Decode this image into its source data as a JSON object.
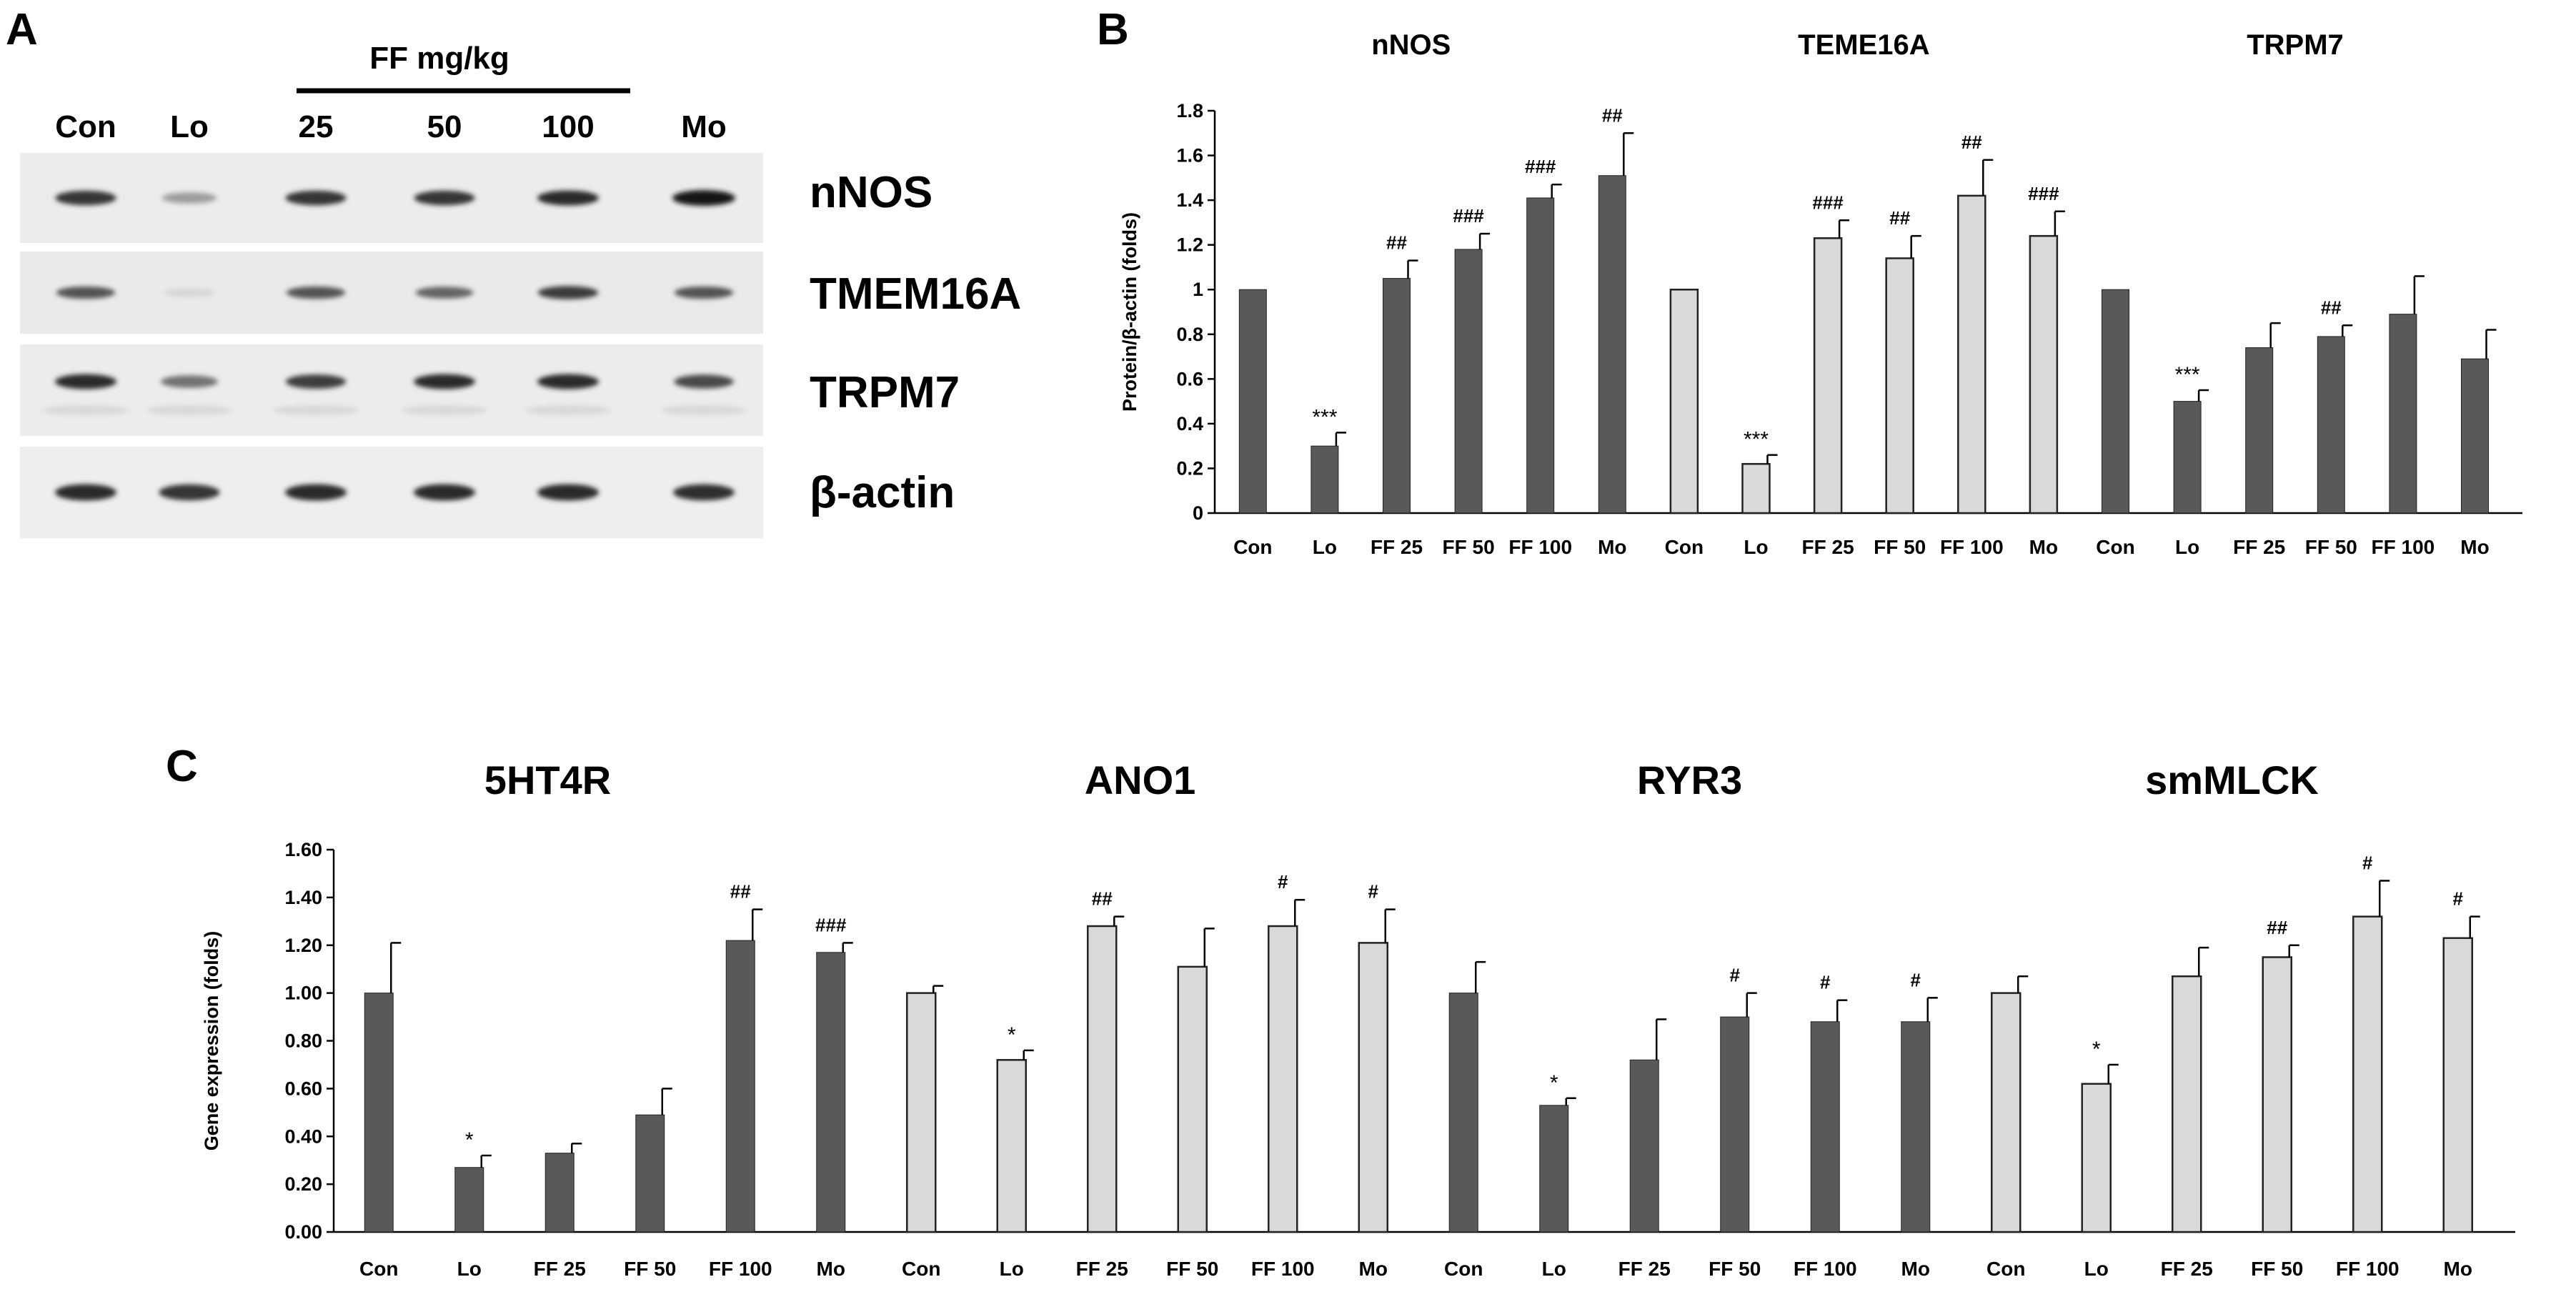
{
  "panel_a": {
    "letter": "A",
    "treatment_label": "FF mg/kg",
    "lanes": [
      "Con",
      "Lo",
      "25",
      "50",
      "100",
      "Mo"
    ],
    "bands": [
      "nNOS",
      "TMEM16A",
      "TRPM7",
      "β-actin"
    ]
  },
  "chart_data": [
    {
      "panel": "B",
      "type": "bar",
      "ylabel": "Protein/β-actin (folds)",
      "xlabel": "",
      "ylim": [
        0,
        1.8
      ],
      "yticks": [
        "0",
        "0.2",
        "0.4",
        "0.6",
        "0.8",
        "1",
        "1.2",
        "1.4",
        "1.6",
        "1.8"
      ],
      "legend": "none",
      "groups": [
        {
          "title": "nNOS",
          "fill": "#595959",
          "categories": [
            "Con",
            "Lo",
            "FF 25",
            "FF 50",
            "FF 100",
            "Mo"
          ],
          "values": [
            1.0,
            0.3,
            1.05,
            1.18,
            1.41,
            1.51
          ],
          "errors": [
            0.0,
            0.06,
            0.08,
            0.07,
            0.06,
            0.19
          ],
          "annotations": [
            "",
            "***",
            "##",
            "###",
            "###",
            "##"
          ]
        },
        {
          "title": "TEME16A",
          "fill": "#d9d9d9",
          "categories": [
            "Con",
            "Lo",
            "FF 25",
            "FF 50",
            "FF 100",
            "Mo"
          ],
          "values": [
            1.0,
            0.22,
            1.23,
            1.14,
            1.42,
            1.24
          ],
          "errors": [
            0.0,
            0.04,
            0.08,
            0.1,
            0.16,
            0.11
          ],
          "annotations": [
            "",
            "***",
            "###",
            "##",
            "##",
            "###"
          ]
        },
        {
          "title": "TRPM7",
          "fill": "#595959",
          "categories": [
            "Con",
            "Lo",
            "FF 25",
            "FF 50",
            "FF 100",
            "Mo"
          ],
          "values": [
            1.0,
            0.5,
            0.74,
            0.79,
            0.89,
            0.69
          ],
          "errors": [
            0.0,
            0.05,
            0.11,
            0.05,
            0.17,
            0.13
          ],
          "annotations": [
            "",
            "***",
            "",
            "##",
            "",
            ""
          ]
        }
      ]
    },
    {
      "panel": "C",
      "type": "bar",
      "ylabel": "Gene expression (folds)",
      "xlabel": "",
      "ylim": [
        0,
        1.6
      ],
      "yticks": [
        "0.00",
        "0.20",
        "0.40",
        "0.60",
        "0.80",
        "1.00",
        "1.20",
        "1.40",
        "1.60"
      ],
      "legend": "none",
      "groups": [
        {
          "title": "5HT4R",
          "fill": "#595959",
          "categories": [
            "Con",
            "Lo",
            "FF 25",
            "FF 50",
            "FF 100",
            "Mo"
          ],
          "values": [
            1.0,
            0.27,
            0.33,
            0.49,
            1.22,
            1.17
          ],
          "errors": [
            0.21,
            0.05,
            0.04,
            0.11,
            0.13,
            0.04
          ],
          "annotations": [
            "",
            "*",
            "",
            "",
            "##",
            "###"
          ]
        },
        {
          "title": "ANO1",
          "fill": "#d9d9d9",
          "categories": [
            "Con",
            "Lo",
            "FF 25",
            "FF 50",
            "FF 100",
            "Mo"
          ],
          "values": [
            1.0,
            0.72,
            1.28,
            1.11,
            1.28,
            1.21
          ],
          "errors": [
            0.03,
            0.04,
            0.04,
            0.16,
            0.11,
            0.14
          ],
          "annotations": [
            "",
            "*",
            "##",
            "",
            "#",
            "#"
          ]
        },
        {
          "title": "RYR3",
          "fill": "#595959",
          "categories": [
            "Con",
            "Lo",
            "FF 25",
            "FF 50",
            "FF 100",
            "Mo"
          ],
          "values": [
            1.0,
            0.53,
            0.72,
            0.9,
            0.88,
            0.88
          ],
          "errors": [
            0.13,
            0.03,
            0.17,
            0.1,
            0.09,
            0.1
          ],
          "annotations": [
            "",
            "*",
            "",
            "#",
            "#",
            "#"
          ]
        },
        {
          "title": "smMLCK",
          "fill": "#d9d9d9",
          "categories": [
            "Con",
            "Lo",
            "FF 25",
            "FF 50",
            "FF 100",
            "Mo"
          ],
          "values": [
            1.0,
            0.62,
            1.07,
            1.15,
            1.32,
            1.23
          ],
          "errors": [
            0.07,
            0.08,
            0.12,
            0.05,
            0.15,
            0.09
          ],
          "annotations": [
            "",
            "*",
            "",
            "##",
            "#",
            "#"
          ]
        }
      ]
    }
  ]
}
